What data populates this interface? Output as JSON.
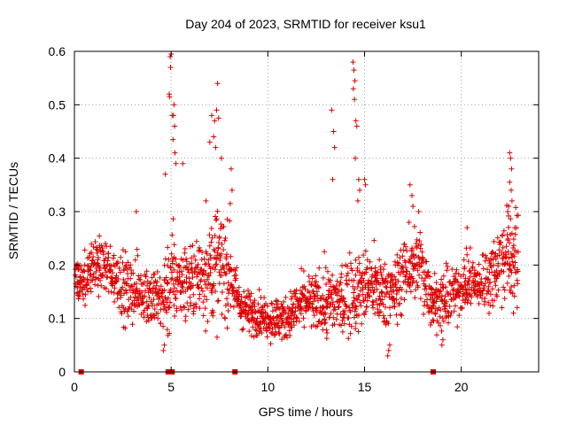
{
  "chart_data": {
    "type": "scatter",
    "title": "Day 204 of 2023, SRMTID for receiver ksu1",
    "xlabel": "GPS time / hours",
    "ylabel": "SRMTID / TECUs",
    "xlim": [
      0,
      24
    ],
    "ylim": [
      0,
      0.6
    ],
    "x_ticks": [
      0,
      5,
      10,
      15,
      20
    ],
    "x_tick_labels": [
      "0",
      "5",
      "10",
      "15",
      "20"
    ],
    "y_ticks": [
      0,
      0.1,
      0.2,
      0.3,
      0.4,
      0.5,
      0.6
    ],
    "y_tick_labels": [
      "0",
      "0.1",
      "0.2",
      "0.3",
      "0.4",
      "0.5",
      "0.6"
    ],
    "grid": true,
    "marker": "plus",
    "color": "#dd0000",
    "zero_markers_x": [
      0.35,
      4.85,
      5.05,
      8.3,
      18.55
    ],
    "profile": {
      "x": [
        0,
        0.5,
        1,
        1.5,
        2,
        2.5,
        3,
        3.5,
        4,
        4.5,
        5,
        5.5,
        6,
        6.5,
        7,
        7.5,
        8,
        8.5,
        9,
        9.5,
        10,
        10.5,
        11,
        11.5,
        12,
        12.5,
        13,
        13.5,
        14,
        14.5,
        15,
        15.5,
        16,
        16.5,
        17,
        17.5,
        18,
        18.5,
        19,
        19.5,
        20,
        20.5,
        21,
        21.5,
        22,
        22.5,
        23
      ],
      "median": [
        0.17,
        0.17,
        0.2,
        0.2,
        0.18,
        0.16,
        0.15,
        0.15,
        0.14,
        0.13,
        0.17,
        0.17,
        0.17,
        0.18,
        0.19,
        0.2,
        0.19,
        0.13,
        0.11,
        0.11,
        0.1,
        0.1,
        0.1,
        0.12,
        0.13,
        0.13,
        0.13,
        0.13,
        0.14,
        0.15,
        0.16,
        0.16,
        0.15,
        0.15,
        0.18,
        0.2,
        0.19,
        0.14,
        0.13,
        0.14,
        0.16,
        0.17,
        0.16,
        0.18,
        0.21,
        0.22,
        0.2
      ],
      "spread": [
        0.04,
        0.04,
        0.05,
        0.05,
        0.05,
        0.06,
        0.06,
        0.06,
        0.06,
        0.06,
        0.1,
        0.08,
        0.06,
        0.08,
        0.1,
        0.1,
        0.08,
        0.04,
        0.04,
        0.04,
        0.04,
        0.04,
        0.04,
        0.05,
        0.05,
        0.05,
        0.07,
        0.06,
        0.08,
        0.08,
        0.07,
        0.06,
        0.06,
        0.06,
        0.07,
        0.08,
        0.07,
        0.05,
        0.05,
        0.05,
        0.05,
        0.05,
        0.05,
        0.06,
        0.07,
        0.09,
        0.09
      ]
    },
    "outliers": [
      [
        4.95,
        0.59
      ],
      [
        5.0,
        0.595
      ],
      [
        4.97,
        0.57
      ],
      [
        4.9,
        0.52
      ],
      [
        4.92,
        0.515
      ],
      [
        5.05,
        0.48
      ],
      [
        5.12,
        0.48
      ],
      [
        5.15,
        0.5
      ],
      [
        5.18,
        0.46
      ],
      [
        5.1,
        0.435
      ],
      [
        5.2,
        0.41
      ],
      [
        5.25,
        0.39
      ],
      [
        7.1,
        0.48
      ],
      [
        7.2,
        0.44
      ],
      [
        7.25,
        0.47
      ],
      [
        7.35,
        0.49
      ],
      [
        7.4,
        0.54
      ],
      [
        7.45,
        0.475
      ],
      [
        7.0,
        0.43
      ],
      [
        7.3,
        0.42
      ],
      [
        7.6,
        0.4
      ],
      [
        8.1,
        0.38
      ],
      [
        8.15,
        0.34
      ],
      [
        8.05,
        0.315
      ],
      [
        13.3,
        0.49
      ],
      [
        13.4,
        0.45
      ],
      [
        13.45,
        0.42
      ],
      [
        13.35,
        0.36
      ],
      [
        14.4,
        0.58
      ],
      [
        14.45,
        0.565
      ],
      [
        14.5,
        0.545
      ],
      [
        14.42,
        0.53
      ],
      [
        14.48,
        0.51
      ],
      [
        14.55,
        0.47
      ],
      [
        14.6,
        0.46
      ],
      [
        14.52,
        0.4
      ],
      [
        14.7,
        0.36
      ],
      [
        14.75,
        0.34
      ],
      [
        14.65,
        0.32
      ],
      [
        17.35,
        0.35
      ],
      [
        17.45,
        0.33
      ],
      [
        17.5,
        0.31
      ],
      [
        17.3,
        0.28
      ],
      [
        17.8,
        0.3
      ],
      [
        22.5,
        0.41
      ],
      [
        22.55,
        0.4
      ],
      [
        22.6,
        0.38
      ],
      [
        22.5,
        0.355
      ],
      [
        22.58,
        0.34
      ],
      [
        22.62,
        0.32
      ],
      [
        22.45,
        0.31
      ],
      [
        22.4,
        0.3
      ],
      [
        4.6,
        0.04
      ],
      [
        4.65,
        0.05
      ],
      [
        16.2,
        0.03
      ],
      [
        16.25,
        0.04
      ],
      [
        16.3,
        0.05
      ],
      [
        19.0,
        0.05
      ],
      [
        19.05,
        0.06
      ],
      [
        4.7,
        0.37
      ],
      [
        5.6,
        0.39
      ],
      [
        15.0,
        0.36
      ],
      [
        15.05,
        0.35
      ],
      [
        6.8,
        0.32
      ],
      [
        3.2,
        0.3
      ],
      [
        20.3,
        0.27
      ]
    ]
  }
}
